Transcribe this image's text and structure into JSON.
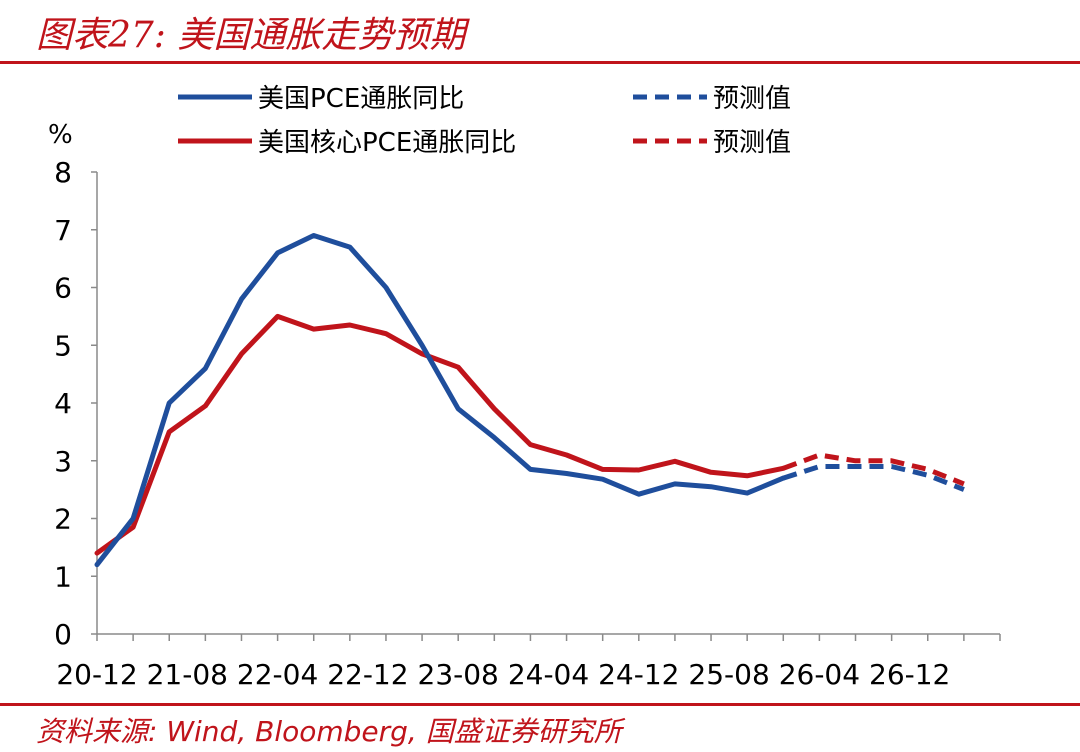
{
  "figure": {
    "title": "图表27:  美国通胀走势预期",
    "source": "资料来源:  Wind,  Bloomberg,  国盛证券研究所"
  },
  "colors": {
    "blue": "#1f4e9c",
    "red": "#c0141b",
    "accent": "#c0141b"
  },
  "chart_data": {
    "type": "line",
    "ylabel": "%",
    "ylim": [
      0,
      8
    ],
    "yticks": [
      "0",
      "1",
      "2",
      "3",
      "4",
      "5",
      "6",
      "7",
      "8"
    ],
    "xtick_labels": [
      "20-12",
      "21-08",
      "22-04",
      "22-12",
      "23-08",
      "24-04",
      "24-12",
      "25-08",
      "26-04",
      "26-12"
    ],
    "grid": false,
    "legend": "top",
    "series": [
      {
        "name": "美国PCE通胀同比",
        "style": "solid",
        "values": [
          [
            0,
            1.2
          ],
          [
            1,
            2.0
          ],
          [
            2,
            4.0
          ],
          [
            3,
            4.6
          ],
          [
            4,
            5.8
          ],
          [
            5,
            6.6
          ],
          [
            6,
            6.9
          ],
          [
            7,
            6.7
          ],
          [
            8,
            6.0
          ],
          [
            9,
            5.0
          ],
          [
            10,
            3.9
          ],
          [
            11,
            3.4
          ],
          [
            12,
            2.85
          ],
          [
            13,
            2.78
          ],
          [
            14,
            2.68
          ],
          [
            15,
            2.42
          ],
          [
            16,
            2.6
          ],
          [
            17,
            2.55
          ],
          [
            18,
            2.44
          ],
          [
            19,
            2.7
          ]
        ]
      },
      {
        "name": "预测值",
        "style": "dashed",
        "values": [
          [
            19,
            2.7
          ],
          [
            20,
            2.9
          ],
          [
            21,
            2.9
          ],
          [
            22,
            2.9
          ],
          [
            23,
            2.75
          ],
          [
            24,
            2.5
          ]
        ]
      },
      {
        "name": "美国核心PCE通胀同比",
        "style": "solid",
        "values": [
          [
            0,
            1.4
          ],
          [
            1,
            1.85
          ],
          [
            2,
            3.5
          ],
          [
            3,
            3.95
          ],
          [
            4,
            4.85
          ],
          [
            5,
            5.5
          ],
          [
            6,
            5.28
          ],
          [
            7,
            5.35
          ],
          [
            8,
            5.2
          ],
          [
            9,
            4.85
          ],
          [
            10,
            4.62
          ],
          [
            11,
            3.9
          ],
          [
            12,
            3.28
          ],
          [
            13,
            3.1
          ],
          [
            14,
            2.85
          ],
          [
            15,
            2.84
          ],
          [
            16,
            2.99
          ],
          [
            17,
            2.8
          ],
          [
            18,
            2.74
          ],
          [
            19,
            2.87
          ]
        ]
      },
      {
        "name": "预测值",
        "style": "dashed",
        "values": [
          [
            19,
            2.87
          ],
          [
            20,
            3.1
          ],
          [
            21,
            3.0
          ],
          [
            22,
            3.0
          ],
          [
            23,
            2.85
          ],
          [
            24,
            2.6
          ]
        ]
      }
    ]
  }
}
